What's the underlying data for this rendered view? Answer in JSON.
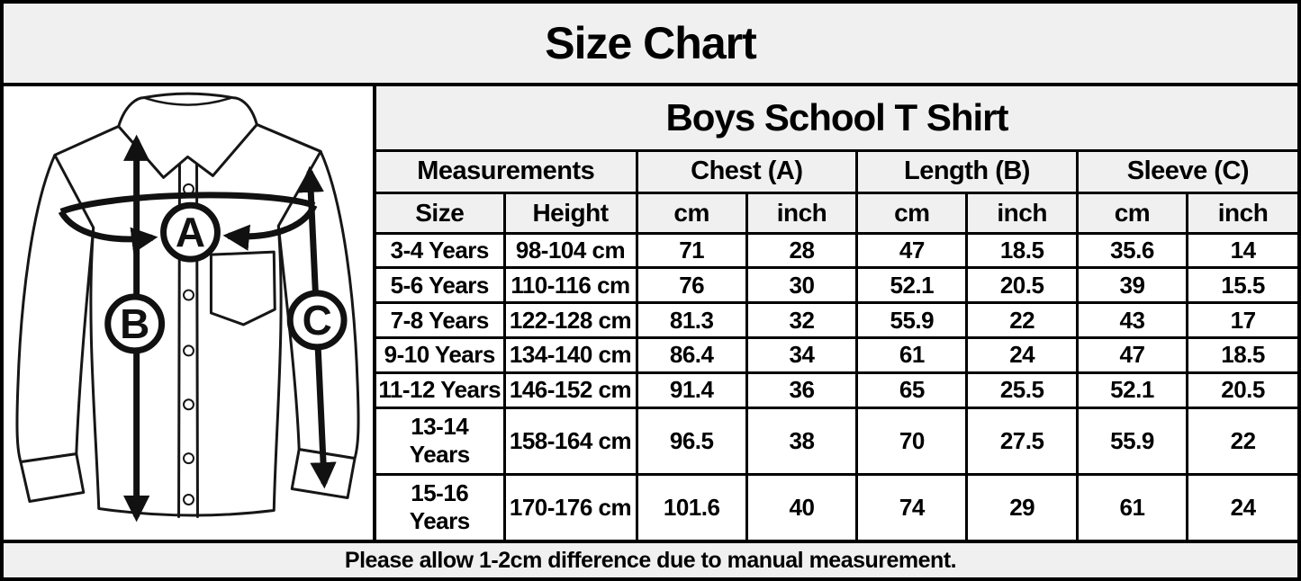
{
  "title": "Size Chart",
  "product": "Boys School T Shirt",
  "diagram": {
    "description": "shirt-measurement-diagram",
    "labels": {
      "chest": "A",
      "length": "B",
      "sleeve": "C"
    }
  },
  "table": {
    "group_headers": [
      {
        "label": "Measurements",
        "span": 2
      },
      {
        "label": "Chest (A)",
        "span": 2
      },
      {
        "label": "Length (B)",
        "span": 2
      },
      {
        "label": "Sleeve (C)",
        "span": 2
      }
    ],
    "sub_headers": [
      "Size",
      "Height",
      "cm",
      "inch",
      "cm",
      "inch",
      "cm",
      "inch"
    ],
    "rows": [
      [
        "3-4 Years",
        "98-104 cm",
        "71",
        "28",
        "47",
        "18.5",
        "35.6",
        "14"
      ],
      [
        "5-6 Years",
        "110-116 cm",
        "76",
        "30",
        "52.1",
        "20.5",
        "39",
        "15.5"
      ],
      [
        "7-8 Years",
        "122-128 cm",
        "81.3",
        "32",
        "55.9",
        "22",
        "43",
        "17"
      ],
      [
        "9-10 Years",
        "134-140 cm",
        "86.4",
        "34",
        "61",
        "24",
        "47",
        "18.5"
      ],
      [
        "11-12 Years",
        "146-152 cm",
        "91.4",
        "36",
        "65",
        "25.5",
        "52.1",
        "20.5"
      ],
      [
        "13-14 Years",
        "158-164 cm",
        "96.5",
        "38",
        "70",
        "27.5",
        "55.9",
        "22"
      ],
      [
        "15-16 Years",
        "170-176 cm",
        "101.6",
        "40",
        "74",
        "29",
        "61",
        "24"
      ]
    ]
  },
  "footer": "Please allow 1-2cm difference due to manual measurement.",
  "chart_data": {
    "type": "table",
    "title": "Size Chart",
    "subtitle": "Boys School T Shirt",
    "columns": [
      "Size",
      "Height",
      "Chest (A) cm",
      "Chest (A) inch",
      "Length (B) cm",
      "Length (B) inch",
      "Sleeve (C) cm",
      "Sleeve (C) inch"
    ],
    "rows": [
      [
        "3-4 Years",
        "98-104 cm",
        71,
        28,
        47,
        18.5,
        35.6,
        14
      ],
      [
        "5-6 Years",
        "110-116 cm",
        76,
        30,
        52.1,
        20.5,
        39,
        15.5
      ],
      [
        "7-8 Years",
        "122-128 cm",
        81.3,
        32,
        55.9,
        22,
        43,
        17
      ],
      [
        "9-10 Years",
        "134-140 cm",
        86.4,
        34,
        61,
        24,
        47,
        18.5
      ],
      [
        "11-12 Years",
        "146-152 cm",
        91.4,
        36,
        65,
        25.5,
        52.1,
        20.5
      ],
      [
        "13-14 Years",
        "158-164 cm",
        96.5,
        38,
        70,
        27.5,
        55.9,
        22
      ],
      [
        "15-16 Years",
        "170-176 cm",
        101.6,
        40,
        74,
        29,
        61,
        24
      ]
    ],
    "note": "Please allow 1-2cm difference due to manual measurement."
  },
  "colors": {
    "background": "#f0f0f0",
    "panel_bg": "#ffffff",
    "border": "#000000",
    "text": "#000000"
  }
}
